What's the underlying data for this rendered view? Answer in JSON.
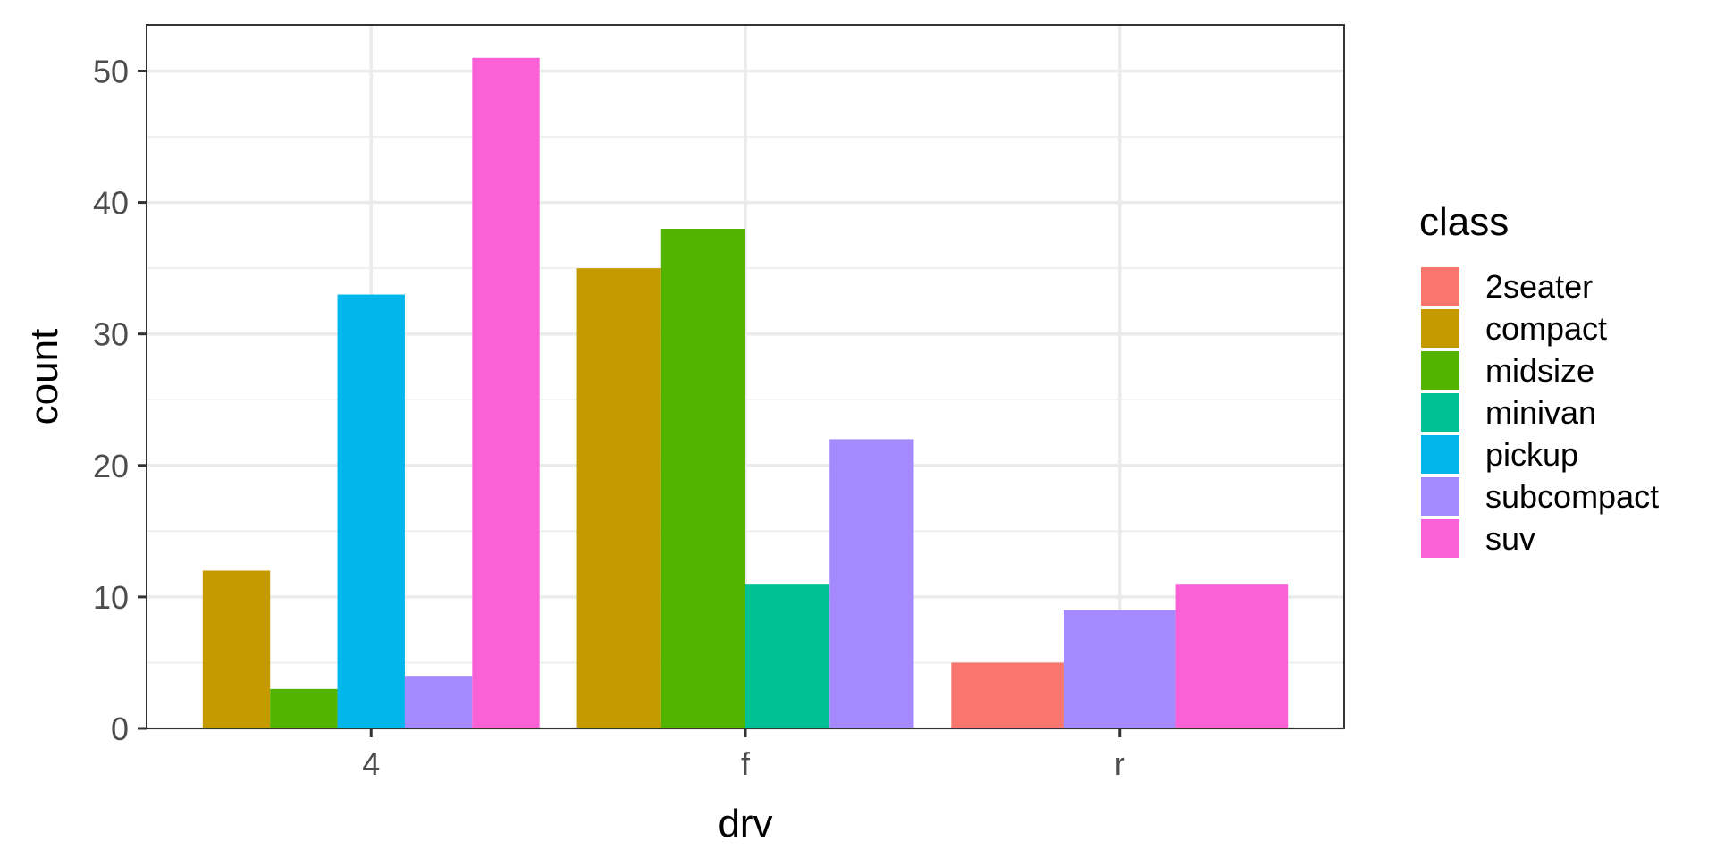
{
  "chart_data": {
    "type": "bar",
    "xlabel": "drv",
    "ylabel": "count",
    "categories": [
      "4",
      "f",
      "r"
    ],
    "ylim": [
      0,
      53.5
    ],
    "yticks": [
      0,
      10,
      20,
      30,
      40,
      50
    ],
    "grid": true,
    "legend": {
      "title": "class",
      "position": "right"
    },
    "series": [
      {
        "name": "2seater",
        "color": "#F8766D",
        "values": [
          null,
          null,
          5
        ]
      },
      {
        "name": "compact",
        "color": "#C49A00",
        "values": [
          12,
          35,
          null
        ]
      },
      {
        "name": "midsize",
        "color": "#53B400",
        "values": [
          3,
          38,
          null
        ]
      },
      {
        "name": "minivan",
        "color": "#00C094",
        "values": [
          null,
          11,
          null
        ]
      },
      {
        "name": "pickup",
        "color": "#00B6EB",
        "values": [
          33,
          null,
          null
        ]
      },
      {
        "name": "subcompact",
        "color": "#A58AFF",
        "values": [
          4,
          22,
          9
        ]
      },
      {
        "name": "suv",
        "color": "#FB61D7",
        "values": [
          51,
          null,
          11
        ]
      }
    ]
  }
}
